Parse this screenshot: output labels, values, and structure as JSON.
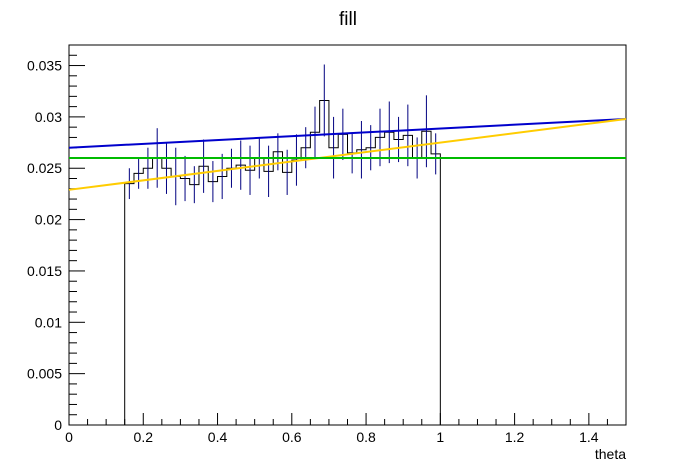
{
  "chart_data": {
    "type": "histogram",
    "title": "fill",
    "xlabel": "theta",
    "ylabel": "",
    "xlim": [
      0,
      1.5
    ],
    "ylim": [
      0,
      0.037
    ],
    "grid": false,
    "x_ticks": [
      0,
      0.2,
      0.4,
      0.6,
      0.8,
      1,
      1.2,
      1.4
    ],
    "x_tick_labels": [
      "0",
      "0.2",
      "0.4",
      "0.6",
      "0.8",
      "1",
      "1.2",
      "1.4"
    ],
    "y_ticks": [
      0,
      0.005,
      0.01,
      0.015,
      0.02,
      0.025,
      0.03,
      0.035
    ],
    "y_tick_labels": [
      "0",
      "0.005",
      "0.01",
      "0.015",
      "0.02",
      "0.025",
      "0.03",
      "0.035"
    ],
    "histogram": {
      "color": "#000080",
      "bin_width": 0.025,
      "bins": [
        {
          "x": 0.1625,
          "value": 0.0235,
          "error": 0.0015
        },
        {
          "x": 0.1875,
          "value": 0.0245,
          "error": 0.0015
        },
        {
          "x": 0.2125,
          "value": 0.025,
          "error": 0.002
        },
        {
          "x": 0.2375,
          "value": 0.026,
          "error": 0.0029
        },
        {
          "x": 0.2625,
          "value": 0.025,
          "error": 0.0025
        },
        {
          "x": 0.2875,
          "value": 0.0242,
          "error": 0.0028
        },
        {
          "x": 0.3125,
          "value": 0.024,
          "error": 0.0022
        },
        {
          "x": 0.3375,
          "value": 0.0234,
          "error": 0.0018
        },
        {
          "x": 0.3625,
          "value": 0.0252,
          "error": 0.0026
        },
        {
          "x": 0.3875,
          "value": 0.0237,
          "error": 0.002
        },
        {
          "x": 0.4125,
          "value": 0.0242,
          "error": 0.0022
        },
        {
          "x": 0.4375,
          "value": 0.025,
          "error": 0.0019
        },
        {
          "x": 0.4625,
          "value": 0.0253,
          "error": 0.0024
        },
        {
          "x": 0.4875,
          "value": 0.0248,
          "error": 0.0024
        },
        {
          "x": 0.5125,
          "value": 0.026,
          "error": 0.002
        },
        {
          "x": 0.5375,
          "value": 0.0247,
          "error": 0.0025
        },
        {
          "x": 0.5625,
          "value": 0.0266,
          "error": 0.0018
        },
        {
          "x": 0.5875,
          "value": 0.0246,
          "error": 0.0022
        },
        {
          "x": 0.6125,
          "value": 0.0258,
          "error": 0.0025
        },
        {
          "x": 0.6375,
          "value": 0.027,
          "error": 0.002
        },
        {
          "x": 0.6625,
          "value": 0.0285,
          "error": 0.0025
        },
        {
          "x": 0.6875,
          "value": 0.0316,
          "error": 0.0035
        },
        {
          "x": 0.7125,
          "value": 0.027,
          "error": 0.003
        },
        {
          "x": 0.7375,
          "value": 0.0283,
          "error": 0.0025
        },
        {
          "x": 0.7625,
          "value": 0.0265,
          "error": 0.002
        },
        {
          "x": 0.7875,
          "value": 0.0268,
          "error": 0.0028
        },
        {
          "x": 0.8125,
          "value": 0.027,
          "error": 0.0022
        },
        {
          "x": 0.8375,
          "value": 0.028,
          "error": 0.0028
        },
        {
          "x": 0.8625,
          "value": 0.0285,
          "error": 0.003
        },
        {
          "x": 0.8875,
          "value": 0.0278,
          "error": 0.0022
        },
        {
          "x": 0.9125,
          "value": 0.0282,
          "error": 0.003
        },
        {
          "x": 0.9375,
          "value": 0.026,
          "error": 0.002
        },
        {
          "x": 0.9625,
          "value": 0.0286,
          "error": 0.0035
        },
        {
          "x": 0.9875,
          "value": 0.0264,
          "error": 0.002
        }
      ]
    },
    "series": [
      {
        "type": "line",
        "color": "#0000cc",
        "x": [
          0,
          1.5
        ],
        "values": [
          0.027,
          0.0298
        ]
      },
      {
        "type": "line",
        "color": "#ffcc00",
        "x": [
          0,
          1.5
        ],
        "values": [
          0.0229,
          0.0298
        ]
      },
      {
        "type": "line",
        "color": "#00bb00",
        "x": [
          0,
          1.5
        ],
        "values": [
          0.026,
          0.026
        ]
      }
    ]
  }
}
